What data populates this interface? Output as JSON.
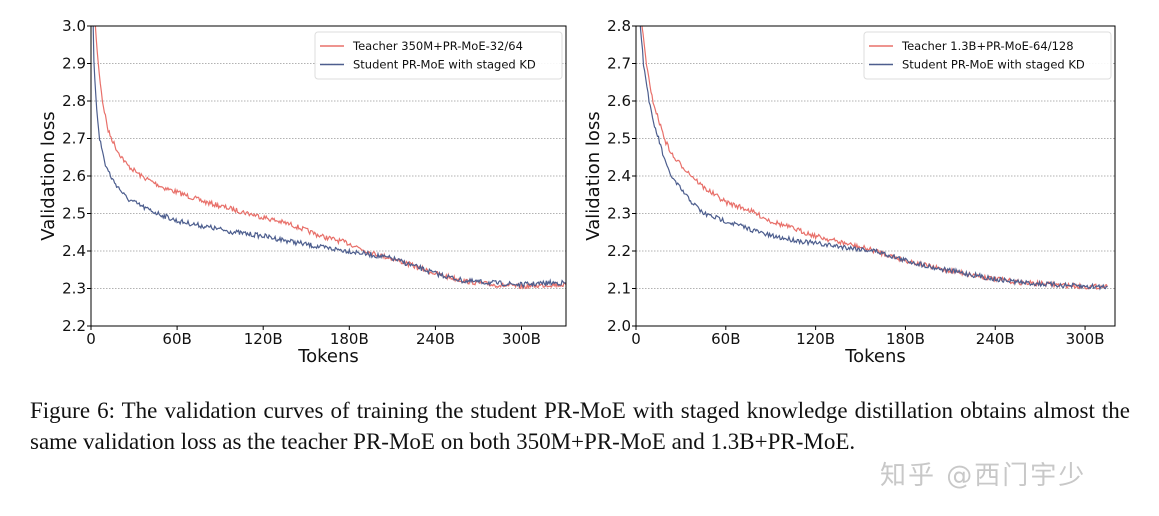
{
  "chart_data": [
    {
      "type": "line",
      "xlabel": "Tokens",
      "ylabel": "Validation loss",
      "xlim": [
        0,
        331
      ],
      "ylim": [
        2.2,
        3.0
      ],
      "xticks": [
        0,
        60,
        120,
        180,
        240,
        300
      ],
      "xtick_labels": [
        "0",
        "60B",
        "120B",
        "180B",
        "240B",
        "300B"
      ],
      "yticks": [
        2.2,
        2.3,
        2.4,
        2.5,
        2.6,
        2.7,
        2.8,
        2.9,
        3.0
      ],
      "ytick_labels": [
        "2.2",
        "2.3",
        "2.4",
        "2.5",
        "2.6",
        "2.7",
        "2.8",
        "2.9",
        "3.0"
      ],
      "grid": "horizontal dotted",
      "legend_position": "top-right",
      "series": [
        {
          "name": "Teacher 350M+PR-MoE-32/64",
          "color": "#e8706a",
          "x": [
            1,
            3,
            5,
            8,
            12,
            18,
            25,
            35,
            50,
            65,
            80,
            100,
            120,
            140,
            160,
            180,
            195,
            210,
            240,
            260,
            280,
            300,
            320,
            331
          ],
          "y": [
            3.1,
            3.0,
            2.9,
            2.8,
            2.72,
            2.67,
            2.63,
            2.6,
            2.57,
            2.55,
            2.53,
            2.51,
            2.49,
            2.47,
            2.44,
            2.42,
            2.395,
            2.38,
            2.34,
            2.32,
            2.31,
            2.305,
            2.31,
            2.31
          ]
        },
        {
          "name": "Student PR-MoE with staged KD",
          "color": "#4d5e8e",
          "x": [
            1,
            2,
            4,
            6,
            10,
            15,
            25,
            40,
            60,
            80,
            100,
            120,
            140,
            160,
            180,
            195,
            210,
            240,
            260,
            280,
            300,
            320,
            331
          ],
          "y": [
            3.1,
            2.9,
            2.78,
            2.7,
            2.63,
            2.59,
            2.54,
            2.51,
            2.48,
            2.465,
            2.45,
            2.44,
            2.425,
            2.41,
            2.4,
            2.39,
            2.38,
            2.34,
            2.32,
            2.315,
            2.31,
            2.315,
            2.315
          ]
        }
      ]
    },
    {
      "type": "line",
      "xlabel": "Tokens",
      "ylabel": "Validation loss",
      "xlim": [
        0,
        320
      ],
      "ylim": [
        2.0,
        2.8
      ],
      "xticks": [
        0,
        60,
        120,
        180,
        240,
        300
      ],
      "xtick_labels": [
        "0",
        "60B",
        "120B",
        "180B",
        "240B",
        "300B"
      ],
      "yticks": [
        2.0,
        2.1,
        2.2,
        2.3,
        2.4,
        2.5,
        2.6,
        2.7,
        2.8
      ],
      "ytick_labels": [
        "2.0",
        "2.1",
        "2.2",
        "2.3",
        "2.4",
        "2.5",
        "2.6",
        "2.7",
        "2.8"
      ],
      "grid": "horizontal dotted",
      "legend_position": "top-right",
      "series": [
        {
          "name": "Teacher 1.3B+PR-MoE-64/128",
          "color": "#e8706a",
          "x": [
            3,
            4,
            7,
            10,
            15,
            20,
            25,
            35,
            45,
            60,
            75,
            90,
            105,
            120,
            140,
            160,
            180,
            200,
            220,
            240,
            260,
            280,
            300,
            315
          ],
          "y": [
            2.85,
            2.8,
            2.7,
            2.62,
            2.55,
            2.49,
            2.45,
            2.41,
            2.37,
            2.33,
            2.31,
            2.28,
            2.26,
            2.24,
            2.22,
            2.2,
            2.175,
            2.155,
            2.14,
            2.125,
            2.115,
            2.11,
            2.105,
            2.105
          ]
        },
        {
          "name": "Student PR-MoE with staged KD",
          "color": "#4d5e8e",
          "x": [
            2,
            3,
            5,
            8,
            11,
            15,
            20,
            25,
            35,
            45,
            60,
            75,
            90,
            105,
            120,
            140,
            160,
            180,
            200,
            220,
            240,
            260,
            280,
            300,
            315
          ],
          "y": [
            2.85,
            2.8,
            2.7,
            2.62,
            2.55,
            2.5,
            2.43,
            2.39,
            2.34,
            2.3,
            2.28,
            2.26,
            2.24,
            2.23,
            2.22,
            2.21,
            2.2,
            2.175,
            2.155,
            2.14,
            2.125,
            2.115,
            2.11,
            2.105,
            2.105
          ]
        }
      ]
    }
  ],
  "caption": "Figure 6: The validation curves of training the student PR-MoE with staged knowledge distillation obtains almost the same validation loss as the teacher PR-MoE on both 350M+PR-MoE and 1.3B+PR-MoE.",
  "watermark": "知乎 @西门宇少"
}
